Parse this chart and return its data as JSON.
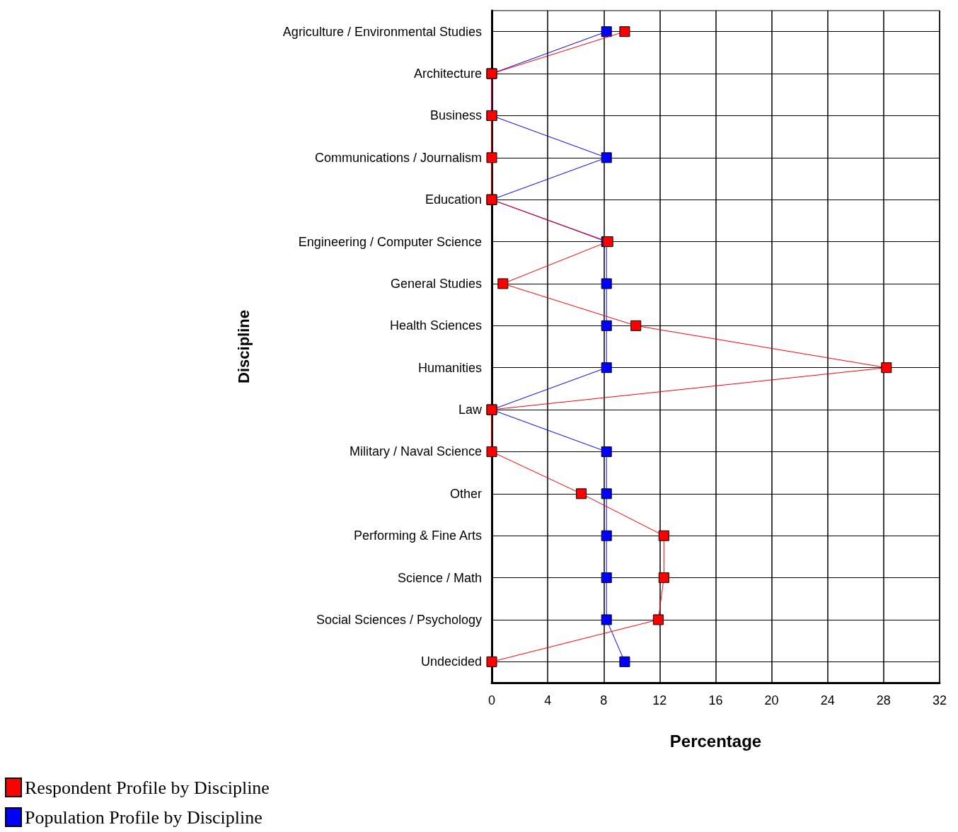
{
  "chart_data": {
    "type": "line",
    "xlabel": "Percentage",
    "ylabel": "Discipline",
    "categories": [
      "Agriculture / Environmental Studies",
      "Architecture",
      "Business",
      "Communications / Journalism",
      "Education",
      "Engineering / Computer Science",
      "General Studies",
      "Health Sciences",
      "Humanities",
      "Law",
      "Military / Naval Science",
      "Other",
      "Performing & Fine Arts",
      "Science / Math",
      "Social Sciences / Psychology",
      "Undecided"
    ],
    "orientation": "horizontal",
    "series": [
      {
        "name": "Respondent Profile by Discipline",
        "color": "#ff0000",
        "values": [
          9.5,
          0,
          0,
          0,
          0,
          8.3,
          0.8,
          10.3,
          28.2,
          0,
          0,
          6.4,
          12.3,
          12.3,
          11.9,
          0
        ]
      },
      {
        "name": "Population Profile by Discipline",
        "color": "#0000ff",
        "values": [
          8.2,
          0,
          0,
          8.2,
          0,
          8.2,
          8.2,
          8.2,
          8.2,
          0,
          8.2,
          8.2,
          8.2,
          8.2,
          8.2,
          9.5
        ]
      }
    ],
    "xlim": [
      0,
      32
    ],
    "xticks": [
      0,
      4,
      8,
      12,
      16,
      20,
      24,
      28,
      32
    ],
    "grid": true,
    "legend": "bottom left",
    "marker": "square",
    "line_style": "solid"
  }
}
